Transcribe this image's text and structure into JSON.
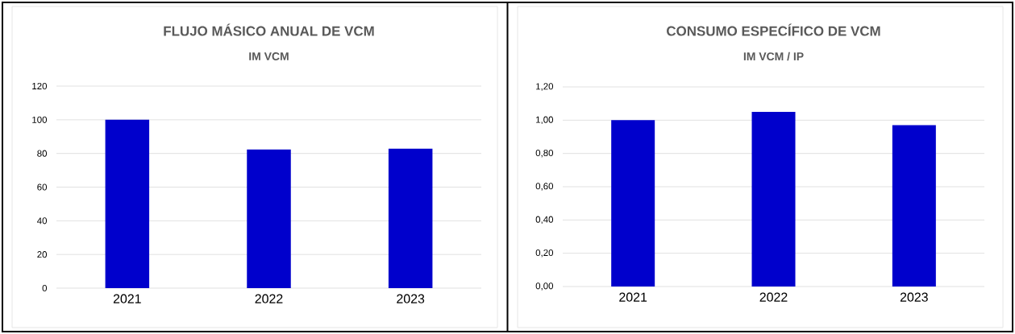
{
  "chart_data": [
    {
      "type": "bar",
      "title": "FLUJO MÁSICO ANUAL DE VCM",
      "subtitle": "IM VCM",
      "categories": [
        "2021",
        "2022",
        "2023"
      ],
      "values": [
        100,
        82.3,
        82.8
      ],
      "color": "#0000cc",
      "ylim": [
        0,
        120
      ],
      "yticks": [
        0,
        20,
        40,
        60,
        80,
        100,
        120
      ],
      "grid": "y"
    },
    {
      "type": "bar",
      "title": "CONSUMO ESPECÍFICO DE VCM",
      "subtitle": "IM VCM / IP",
      "categories": [
        "2021",
        "2022",
        "2023"
      ],
      "values": [
        1.0,
        1.05,
        0.97
      ],
      "color": "#0000cc",
      "ylim": [
        0,
        1.2
      ],
      "yticks": [
        {
          "value": 0,
          "label": "0,00"
        },
        {
          "value": 0.2,
          "label": "0,20"
        },
        {
          "value": 0.4,
          "label": "0,40"
        },
        {
          "value": 0.6,
          "label": "0,60"
        },
        {
          "value": 0.8,
          "label": "0,80"
        },
        {
          "value": 1.0,
          "label": "1,00"
        },
        {
          "value": 1.2,
          "label": "1,20"
        }
      ],
      "grid": "y"
    }
  ]
}
